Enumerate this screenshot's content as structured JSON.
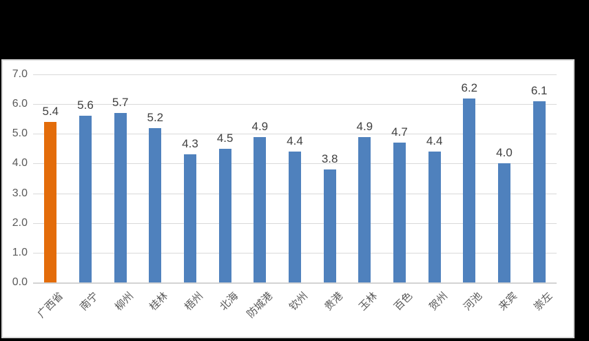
{
  "chart_data": {
    "type": "bar",
    "title": "",
    "categories": [
      "广西省",
      "南宁",
      "柳州",
      "桂林",
      "梧州",
      "北海",
      "防城港",
      "钦州",
      "贵港",
      "玉林",
      "百色",
      "贺州",
      "河池",
      "来宾",
      "崇左"
    ],
    "values": [
      5.4,
      5.6,
      5.7,
      5.2,
      4.3,
      4.5,
      4.9,
      4.4,
      3.8,
      4.9,
      4.7,
      4.4,
      6.2,
      4.0,
      6.1
    ],
    "value_labels": [
      "5.4",
      "5.6",
      "5.7",
      "5.2",
      "4.3",
      "4.5",
      "4.9",
      "4.4",
      "3.8",
      "4.9",
      "4.7",
      "4.4",
      "6.2",
      "4.0",
      "6.1"
    ],
    "xlabel": "",
    "ylabel": "",
    "ylim": [
      0.0,
      7.0
    ],
    "y_tick_labels": [
      "7.0",
      "6.0",
      "5.0",
      "4.0",
      "3.0",
      "2.0",
      "1.0",
      "0.0"
    ],
    "grid": true,
    "legend": null,
    "highlight_index": 0,
    "colors": {
      "bar_default": "#4F81BD",
      "bar_highlight": "#E36C0A",
      "gridline": "#D9D9D9",
      "axis_line": "#D3D3D3",
      "tick_text": "#595959",
      "value_text": "#404040",
      "panel_background": "#FFFFFF",
      "panel_border": "#D9D9D9",
      "frame_background": "#000000"
    }
  }
}
